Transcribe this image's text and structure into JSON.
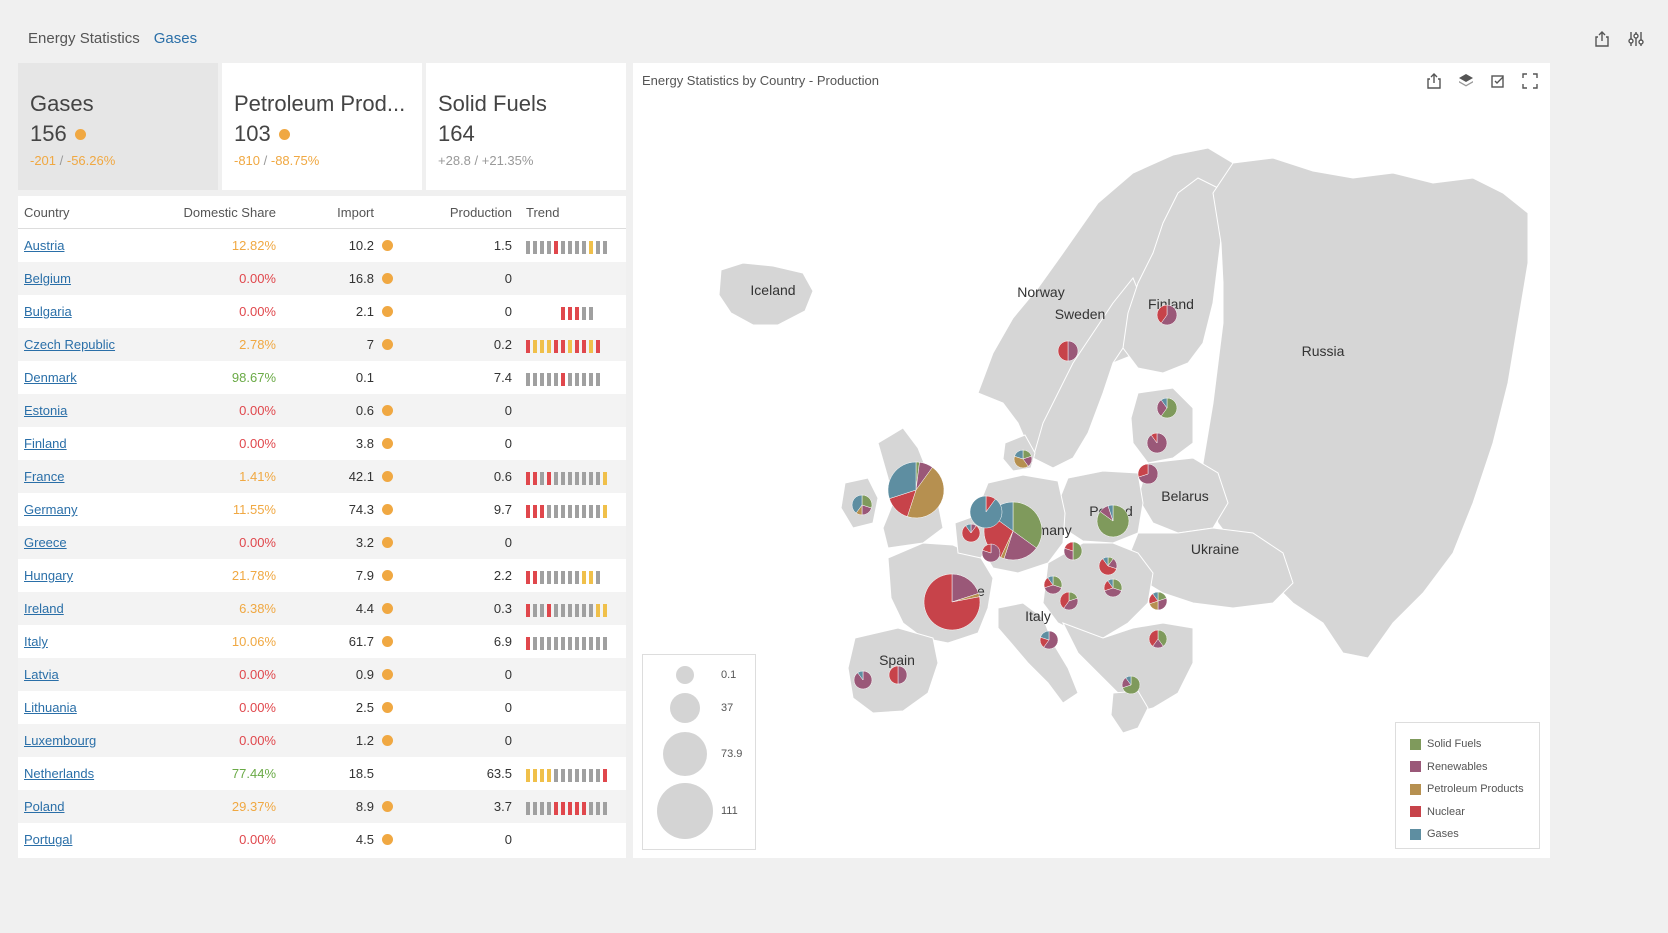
{
  "breadcrumb": {
    "root": "Energy Statistics",
    "current": "Gases"
  },
  "toolbar": {
    "export_icon": "export-icon",
    "settings_icon": "sliders-icon"
  },
  "colors": {
    "solid_fuels": "#7f9a5c",
    "renewables": "#9a5878",
    "petroleum": "#b69050",
    "nuclear": "#c7434a",
    "gases": "#5e8ea1",
    "orange": "#f0a842",
    "red": "#e0474c",
    "green": "#6aaa46",
    "land": "#d6d6d6"
  },
  "cards": [
    {
      "title": "Gases",
      "value": "156",
      "delta_abs": "-201",
      "delta_pct": "-56.26%",
      "trend": "neg",
      "selected": true,
      "dot": true
    },
    {
      "title": "Petroleum Prod...",
      "value": "103",
      "delta_abs": "-810",
      "delta_pct": "-88.75%",
      "trend": "neg",
      "selected": false,
      "dot": true
    },
    {
      "title": "Solid Fuels",
      "value": "164",
      "delta_abs": "+28.8",
      "delta_pct": "+21.35%",
      "trend": "pos",
      "selected": false,
      "dot": false
    }
  ],
  "grid": {
    "columns": {
      "country": "Country",
      "share": "Domestic Share",
      "import": "Import",
      "production": "Production",
      "trend": "Trend"
    },
    "rows": [
      {
        "country": "Austria",
        "share": "12.82%",
        "share_color": "orange",
        "import": "10.2",
        "dot": true,
        "production": "1.5",
        "trend": [
          "g",
          "g",
          "g",
          "g",
          "r",
          "g",
          "g",
          "g",
          "g",
          "y",
          "g",
          "g"
        ]
      },
      {
        "country": "Belgium",
        "share": "0.00%",
        "share_color": "red",
        "import": "16.8",
        "dot": true,
        "production": "0",
        "trend": []
      },
      {
        "country": "Bulgaria",
        "share": "0.00%",
        "share_color": "red",
        "import": "2.1",
        "dot": true,
        "production": "0",
        "trend": [
          "",
          "",
          "",
          "",
          "",
          "r",
          "r",
          "r",
          "g",
          "g"
        ]
      },
      {
        "country": "Czech Republic",
        "share": "2.78%",
        "share_color": "orange",
        "import": "7",
        "dot": true,
        "production": "0.2",
        "trend": [
          "r",
          "y",
          "y",
          "y",
          "r",
          "r",
          "y",
          "r",
          "r",
          "y",
          "r"
        ]
      },
      {
        "country": "Denmark",
        "share": "98.67%",
        "share_color": "green",
        "import": "0.1",
        "dot": false,
        "production": "7.4",
        "trend": [
          "g",
          "g",
          "g",
          "g",
          "g",
          "r",
          "g",
          "g",
          "g",
          "g",
          "g"
        ]
      },
      {
        "country": "Estonia",
        "share": "0.00%",
        "share_color": "red",
        "import": "0.6",
        "dot": true,
        "production": "0",
        "trend": []
      },
      {
        "country": "Finland",
        "share": "0.00%",
        "share_color": "red",
        "import": "3.8",
        "dot": true,
        "production": "0",
        "trend": []
      },
      {
        "country": "France",
        "share": "1.41%",
        "share_color": "orange",
        "import": "42.1",
        "dot": true,
        "production": "0.6",
        "trend": [
          "r",
          "r",
          "g",
          "r",
          "g",
          "g",
          "g",
          "g",
          "g",
          "g",
          "g",
          "y"
        ]
      },
      {
        "country": "Germany",
        "share": "11.55%",
        "share_color": "orange",
        "import": "74.3",
        "dot": true,
        "production": "9.7",
        "trend": [
          "r",
          "r",
          "r",
          "g",
          "g",
          "g",
          "g",
          "g",
          "g",
          "g",
          "g",
          "y"
        ]
      },
      {
        "country": "Greece",
        "share": "0.00%",
        "share_color": "red",
        "import": "3.2",
        "dot": true,
        "production": "0",
        "trend": []
      },
      {
        "country": "Hungary",
        "share": "21.78%",
        "share_color": "orange",
        "import": "7.9",
        "dot": true,
        "production": "2.2",
        "trend": [
          "r",
          "r",
          "g",
          "g",
          "g",
          "g",
          "g",
          "g",
          "y",
          "y",
          "g"
        ]
      },
      {
        "country": "Ireland",
        "share": "6.38%",
        "share_color": "orange",
        "import": "4.4",
        "dot": true,
        "production": "0.3",
        "trend": [
          "r",
          "g",
          "g",
          "r",
          "g",
          "g",
          "g",
          "g",
          "g",
          "g",
          "y",
          "y"
        ]
      },
      {
        "country": "Italy",
        "share": "10.06%",
        "share_color": "orange",
        "import": "61.7",
        "dot": true,
        "production": "6.9",
        "trend": [
          "r",
          "g",
          "g",
          "g",
          "g",
          "g",
          "g",
          "g",
          "g",
          "g",
          "g",
          "g"
        ]
      },
      {
        "country": "Latvia",
        "share": "0.00%",
        "share_color": "red",
        "import": "0.9",
        "dot": true,
        "production": "0",
        "trend": []
      },
      {
        "country": "Lithuania",
        "share": "0.00%",
        "share_color": "red",
        "import": "2.5",
        "dot": true,
        "production": "0",
        "trend": []
      },
      {
        "country": "Luxembourg",
        "share": "0.00%",
        "share_color": "red",
        "import": "1.2",
        "dot": true,
        "production": "0",
        "trend": []
      },
      {
        "country": "Netherlands",
        "share": "77.44%",
        "share_color": "green",
        "import": "18.5",
        "dot": false,
        "production": "63.5",
        "trend": [
          "y",
          "y",
          "y",
          "y",
          "g",
          "g",
          "g",
          "g",
          "g",
          "g",
          "g",
          "r"
        ]
      },
      {
        "country": "Poland",
        "share": "29.37%",
        "share_color": "orange",
        "import": "8.9",
        "dot": true,
        "production": "3.7",
        "trend": [
          "g",
          "g",
          "g",
          "g",
          "r",
          "r",
          "r",
          "r",
          "r",
          "g",
          "g",
          "g"
        ]
      },
      {
        "country": "Portugal",
        "share": "0.00%",
        "share_color": "red",
        "import": "4.5",
        "dot": true,
        "production": "0",
        "trend": []
      }
    ]
  },
  "map": {
    "title": "Energy Statistics by Country - Production",
    "icons": [
      "export-icon",
      "layers-icon",
      "select-icon",
      "fullscreen-icon"
    ],
    "labels": [
      "Iceland",
      "Norway",
      "Sweden",
      "Finland",
      "Russia",
      "Belarus",
      "Poland",
      "Ukraine",
      "Germany",
      "France",
      "Italy",
      "Spain"
    ],
    "size_legend": [
      "0.1",
      "37",
      "73.9",
      "111"
    ],
    "color_legend": [
      "Solid Fuels",
      "Renewables",
      "Petroleum Products",
      "Nuclear",
      "Gases"
    ]
  }
}
